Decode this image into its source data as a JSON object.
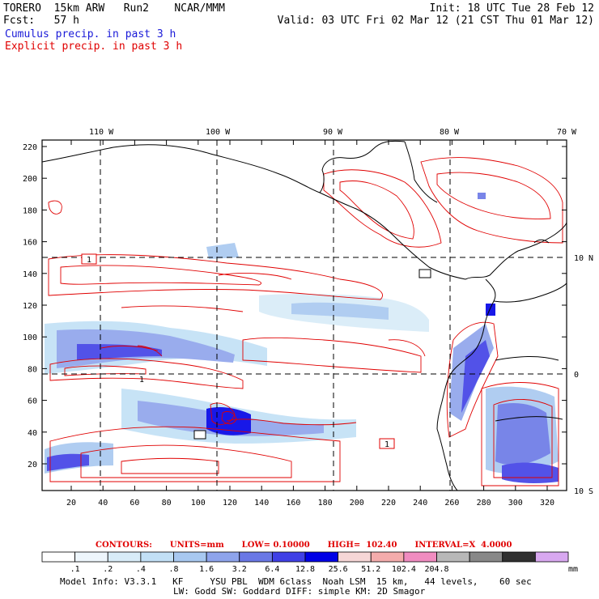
{
  "header": {
    "line1_left": "TORERO  15km ARW   Run2    NCAR/MMM",
    "line1_right": "Init: 18 UTC Tue 28 Feb 12",
    "line2_left": "Fcst:   57 h",
    "line2_right": "Valid: 03 UTC Fri 02 Mar 12 (21 CST Thu 01 Mar 12)",
    "series1": "Cumulus precip. in past 3 h",
    "series2": "Explicit precip. in past 3 h"
  },
  "map": {
    "lon_labels": [
      "110 W",
      "100 W",
      "90 W",
      "80 W",
      "70 W"
    ],
    "lat_labels": [
      "10 N",
      "0",
      "10 S"
    ],
    "y_ticks": [
      "220",
      "200",
      "180",
      "160",
      "140",
      "120",
      "100",
      "80",
      "60",
      "40",
      "20"
    ],
    "x_ticks": [
      "20",
      "40",
      "60",
      "80",
      "100",
      "120",
      "140",
      "160",
      "180",
      "200",
      "220",
      "240",
      "260",
      "280",
      "300",
      "320"
    ],
    "box_labels": [
      "1",
      "1",
      "1"
    ]
  },
  "contours": {
    "label": "CONTOURS:  UNITS=mm  LOW= 0.10000      HIGH=  102.40      INTERVAL=X  4.0000",
    "parts": [
      "CONTOURS:",
      "UNITS=mm",
      "LOW= 0.10000",
      "HIGH=  102.40",
      "INTERVAL=X  4.0000"
    ]
  },
  "colorbar": {
    "colors": [
      "#ffffff",
      "#eef6fc",
      "#d8ecf8",
      "#c2e0f6",
      "#a8c8f0",
      "#8ea4ec",
      "#6a78e6",
      "#4040e6",
      "#0000e6",
      "#f6d6d6",
      "#f4acac",
      "#f08cc0",
      "#b8b8b8",
      "#888888",
      "#303030",
      "#d8a8f0"
    ],
    "labels": [
      ".1",
      ".2",
      ".4",
      ".8",
      "1.6",
      "3.2",
      "6.4",
      "12.8",
      "25.6",
      "51.2",
      "102.4",
      "204.8"
    ],
    "unit": "mm"
  },
  "footer": {
    "line1": "Model Info: V3.3.1   KF     YSU PBL  WDM 6class  Noah LSM  15 km,   44 levels,    60 sec",
    "line2": "LW: Godd SW: Goddard DIFF: simple KM: 2D Smagor"
  }
}
